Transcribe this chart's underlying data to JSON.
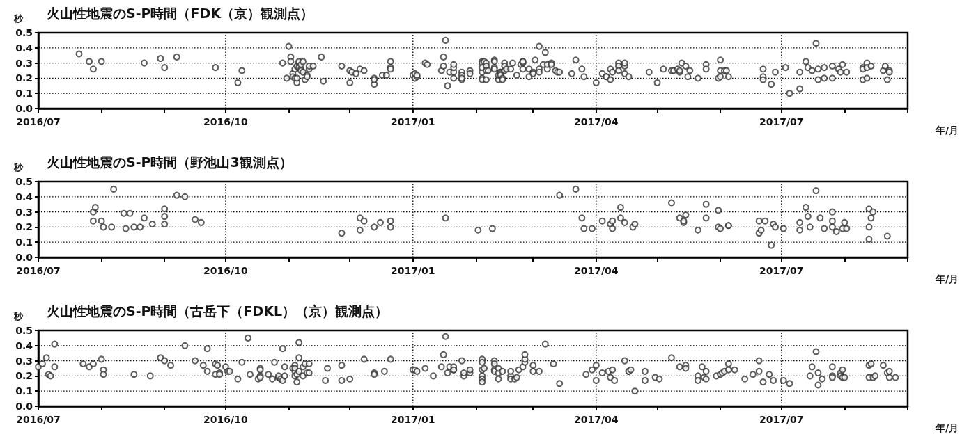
{
  "chart_data": [
    {
      "type": "scatter",
      "title": "火山性地震のS-P時間（FDK（京）観測点）",
      "ylabel": "秒",
      "xlabel": "年/月",
      "color": "#333333",
      "marker": "circle",
      "grid": true,
      "xlim": [
        "2016-07-01",
        "2017-09-01"
      ],
      "xticks": [
        {
          "value": "2016-07-01",
          "label": "2016/07"
        },
        {
          "value": "2016-08-01",
          "label": null
        },
        {
          "value": "2016-09-01",
          "label": null
        },
        {
          "value": "2016-10-01",
          "label": "2016/10"
        },
        {
          "value": "2016-11-01",
          "label": null
        },
        {
          "value": "2016-12-01",
          "label": null
        },
        {
          "value": "2017-01-01",
          "label": "2017/01"
        },
        {
          "value": "2017-02-01",
          "label": null
        },
        {
          "value": "2017-03-01",
          "label": null
        },
        {
          "value": "2017-04-01",
          "label": "2017/04"
        },
        {
          "value": "2017-05-01",
          "label": null
        },
        {
          "value": "2017-06-01",
          "label": null
        },
        {
          "value": "2017-07-01",
          "label": "2017/07"
        },
        {
          "value": "2017-08-01",
          "label": null
        },
        {
          "value": "2017-09-01",
          "label": null
        }
      ],
      "ylim": [
        0,
        0.5
      ],
      "yticks": [
        {
          "value": 0,
          "label": "0.0"
        },
        {
          "value": 0.1,
          "label": "0.1"
        },
        {
          "value": 0.2,
          "label": "0.2"
        },
        {
          "value": 0.3,
          "label": "0.3"
        },
        {
          "value": 0.4,
          "label": "0.4"
        },
        {
          "value": 0.5,
          "label": "0.5"
        }
      ],
      "x": [
        "2016-07-21",
        "2016-07-26",
        "2016-07-28",
        "2016-08-01",
        "2016-08-22",
        "2016-08-30",
        "2016-09-01",
        "2016-09-07",
        "2016-09-26",
        "2016-10-07",
        "2016-10-09",
        "2016-10-29",
        "2016-10-31",
        "2016-11-01",
        "2016-11-02",
        "2016-11-02",
        "2016-11-03",
        "2016-11-03",
        "2016-11-04",
        "2016-11-04",
        "2016-11-05",
        "2016-11-05",
        "2016-11-05",
        "2016-11-06",
        "2016-11-06",
        "2016-11-06",
        "2016-11-07",
        "2016-11-07",
        "2016-11-07",
        "2016-11-08",
        "2016-11-08",
        "2016-11-09",
        "2016-11-10",
        "2016-11-10",
        "2016-11-11",
        "2016-11-11",
        "2016-11-13",
        "2016-11-17",
        "2016-11-18",
        "2016-11-27",
        "2016-12-01",
        "2016-12-01",
        "2016-12-02",
        "2016-12-04",
        "2016-12-06",
        "2016-12-08",
        "2016-12-13",
        "2016-12-13",
        "2016-12-13",
        "2016-12-17",
        "2016-12-19",
        "2016-12-21",
        "2016-12-21",
        "2016-12-21",
        "2017-01-01",
        "2017-01-02",
        "2017-01-02",
        "2017-01-03",
        "2017-01-03",
        "2017-01-07",
        "2017-01-08",
        "2017-01-15",
        "2017-01-16",
        "2017-01-16",
        "2017-01-17",
        "2017-01-18",
        "2017-01-19",
        "2017-01-21",
        "2017-01-21",
        "2017-01-21",
        "2017-01-21",
        "2017-01-25",
        "2017-01-25",
        "2017-01-25",
        "2017-01-25",
        "2017-01-29",
        "2017-01-29",
        "2017-02-04",
        "2017-02-04",
        "2017-02-04",
        "2017-02-04",
        "2017-02-04",
        "2017-02-04",
        "2017-02-05",
        "2017-02-06",
        "2017-02-06",
        "2017-02-06",
        "2017-02-06",
        "2017-02-07",
        "2017-02-10",
        "2017-02-10",
        "2017-02-10",
        "2017-02-10",
        "2017-02-12",
        "2017-02-12",
        "2017-02-13",
        "2017-02-13",
        "2017-02-13",
        "2017-02-13",
        "2017-02-14",
        "2017-02-14",
        "2017-02-15",
        "2017-02-15",
        "2017-02-15",
        "2017-02-16",
        "2017-02-18",
        "2017-02-19",
        "2017-02-21",
        "2017-02-23",
        "2017-02-24",
        "2017-02-24",
        "2017-02-24",
        "2017-02-24",
        "2017-02-27",
        "2017-02-27",
        "2017-03-01",
        "2017-03-01",
        "2017-03-02",
        "2017-03-04",
        "2017-03-04",
        "2017-03-04",
        "2017-03-06",
        "2017-03-07",
        "2017-03-08",
        "2017-03-08",
        "2017-03-10",
        "2017-03-10",
        "2017-03-12",
        "2017-03-13",
        "2017-03-14",
        "2017-03-20",
        "2017-03-22",
        "2017-03-25",
        "2017-03-26",
        "2017-04-01",
        "2017-04-04",
        "2017-04-06",
        "2017-04-06",
        "2017-04-08",
        "2017-04-08",
        "2017-04-09",
        "2017-04-12",
        "2017-04-12",
        "2017-04-12",
        "2017-04-15",
        "2017-04-15",
        "2017-04-15",
        "2017-04-17",
        "2017-04-27",
        "2017-05-01",
        "2017-05-04",
        "2017-05-08",
        "2017-05-09",
        "2017-05-11",
        "2017-05-12",
        "2017-05-12",
        "2017-05-13",
        "2017-05-15",
        "2017-05-16",
        "2017-05-17",
        "2017-05-21",
        "2017-05-25",
        "2017-05-25",
        "2017-05-31",
        "2017-06-01",
        "2017-06-01",
        "2017-06-01",
        "2017-06-03",
        "2017-06-04",
        "2017-06-05",
        "2017-06-22",
        "2017-06-22",
        "2017-06-22",
        "2017-06-26",
        "2017-06-28",
        "2017-07-03",
        "2017-07-05",
        "2017-07-10",
        "2017-07-10",
        "2017-07-13",
        "2017-07-14",
        "2017-07-16",
        "2017-07-18",
        "2017-07-19",
        "2017-07-19",
        "2017-07-22",
        "2017-07-22",
        "2017-07-26",
        "2017-07-26",
        "2017-07-29",
        "2017-07-30",
        "2017-07-31",
        "2017-08-02",
        "2017-08-10",
        "2017-08-10",
        "2017-08-10",
        "2017-08-12",
        "2017-08-12",
        "2017-08-12",
        "2017-08-14",
        "2017-08-20",
        "2017-08-21",
        "2017-08-22",
        "2017-08-23",
        "2017-08-23"
      ],
      "values": [
        0.36,
        0.31,
        0.26,
        0.31,
        0.3,
        0.33,
        0.27,
        0.34,
        0.27,
        0.17,
        0.25,
        0.3,
        0.2,
        0.41,
        0.34,
        0.31,
        0.23,
        0.21,
        0.26,
        0.2,
        0.17,
        0.28,
        0.2,
        0.3,
        0.27,
        0.31,
        0.26,
        0.29,
        0.25,
        0.24,
        0.31,
        0.19,
        0.22,
        0.21,
        0.26,
        0.28,
        0.28,
        0.34,
        0.18,
        0.28,
        0.25,
        0.17,
        0.24,
        0.23,
        0.26,
        0.25,
        0.2,
        0.16,
        0.19,
        0.22,
        0.22,
        0.31,
        0.27,
        0.26,
        0.22,
        0.2,
        0.23,
        0.21,
        0.22,
        0.3,
        0.29,
        0.25,
        0.34,
        0.28,
        0.45,
        0.15,
        0.24,
        0.24,
        0.2,
        0.27,
        0.29,
        0.24,
        0.22,
        0.19,
        0.2,
        0.25,
        0.23,
        0.31,
        0.2,
        0.19,
        0.3,
        0.24,
        0.27,
        0.31,
        0.19,
        0.3,
        0.28,
        0.25,
        0.25,
        0.32,
        0.31,
        0.27,
        0.26,
        0.19,
        0.22,
        0.24,
        0.24,
        0.23,
        0.22,
        0.2,
        0.19,
        0.25,
        0.3,
        0.28,
        0.26,
        0.26,
        0.3,
        0.22,
        0.29,
        0.31,
        0.3,
        0.26,
        0.31,
        0.26,
        0.21,
        0.24,
        0.23,
        0.32,
        0.26,
        0.24,
        0.41,
        0.29,
        0.37,
        0.26,
        0.29,
        0.3,
        0.29,
        0.25,
        0.24,
        0.24,
        0.23,
        0.32,
        0.26,
        0.21,
        0.17,
        0.23,
        0.21,
        0.21,
        0.26,
        0.19,
        0.24,
        0.3,
        0.28,
        0.25,
        0.28,
        0.23,
        0.3,
        0.21,
        0.24,
        0.17,
        0.26,
        0.25,
        0.25,
        0.26,
        0.24,
        0.25,
        0.3,
        0.28,
        0.21,
        0.25,
        0.2,
        0.29,
        0.26,
        0.2,
        0.25,
        0.32,
        0.21,
        0.25,
        0.25,
        0.21,
        0.26,
        0.21,
        0.19,
        0.16,
        0.24,
        0.27,
        0.1,
        0.13,
        0.24,
        0.31,
        0.27,
        0.25,
        0.43,
        0.19,
        0.26,
        0.27,
        0.2,
        0.28,
        0.2,
        0.26,
        0.24,
        0.29,
        0.24,
        0.27,
        0.26,
        0.19,
        0.3,
        0.2,
        0.27,
        0.28,
        0.25,
        0.28,
        0.19,
        0.25,
        0.24
      ]
    },
    {
      "type": "scatter",
      "title": "火山性地震のS-P時間（野池山3観測点）",
      "ylabel": "秒",
      "xlabel": "年/月",
      "color": "#333333",
      "marker": "circle",
      "grid": true,
      "xlim": [
        "2016-07-01",
        "2017-09-01"
      ],
      "xticks": [
        {
          "value": "2016-07-01",
          "label": "2016/07"
        },
        {
          "value": "2016-08-01",
          "label": null
        },
        {
          "value": "2016-09-01",
          "label": null
        },
        {
          "value": "2016-10-01",
          "label": "2016/10"
        },
        {
          "value": "2016-11-01",
          "label": null
        },
        {
          "value": "2016-12-01",
          "label": null
        },
        {
          "value": "2017-01-01",
          "label": "2017/01"
        },
        {
          "value": "2017-02-01",
          "label": null
        },
        {
          "value": "2017-03-01",
          "label": null
        },
        {
          "value": "2017-04-01",
          "label": "2017/04"
        },
        {
          "value": "2017-05-01",
          "label": null
        },
        {
          "value": "2017-06-01",
          "label": null
        },
        {
          "value": "2017-07-01",
          "label": "2017/07"
        },
        {
          "value": "2017-08-01",
          "label": null
        },
        {
          "value": "2017-09-01",
          "label": null
        }
      ],
      "ylim": [
        0,
        0.5
      ],
      "yticks": [
        {
          "value": 0,
          "label": "0.0"
        },
        {
          "value": 0.1,
          "label": "0.1"
        },
        {
          "value": 0.2,
          "label": "0.2"
        },
        {
          "value": 0.3,
          "label": "0.3"
        },
        {
          "value": 0.4,
          "label": "0.4"
        },
        {
          "value": 0.5,
          "label": "0.5"
        }
      ],
      "x": [
        "2016-07-28",
        "2016-07-28",
        "2016-07-29",
        "2016-08-01",
        "2016-08-02",
        "2016-08-06",
        "2016-08-07",
        "2016-08-12",
        "2016-08-13",
        "2016-08-15",
        "2016-08-17",
        "2016-08-20",
        "2016-08-22",
        "2016-08-26",
        "2016-09-01",
        "2016-09-01",
        "2016-09-01",
        "2016-09-07",
        "2016-09-11",
        "2016-09-16",
        "2016-09-19",
        "2016-11-27",
        "2016-12-06",
        "2016-12-06",
        "2016-12-08",
        "2016-12-13",
        "2016-12-16",
        "2016-12-21",
        "2016-12-21",
        "2017-01-17",
        "2017-02-02",
        "2017-02-09",
        "2017-03-14",
        "2017-03-22",
        "2017-03-25",
        "2017-03-26",
        "2017-03-30",
        "2017-04-04",
        "2017-04-08",
        "2017-04-09",
        "2017-04-09",
        "2017-04-13",
        "2017-04-13",
        "2017-04-15",
        "2017-04-19",
        "2017-04-20",
        "2017-05-08",
        "2017-05-12",
        "2017-05-14",
        "2017-05-14",
        "2017-05-15",
        "2017-05-21",
        "2017-05-25",
        "2017-05-25",
        "2017-05-31",
        "2017-05-31",
        "2017-06-01",
        "2017-06-05",
        "2017-06-05",
        "2017-06-20",
        "2017-06-23",
        "2017-06-20",
        "2017-06-21",
        "2017-06-26",
        "2017-06-27",
        "2017-06-28",
        "2017-07-02",
        "2017-07-10",
        "2017-07-10",
        "2017-07-13",
        "2017-07-14",
        "2017-07-15",
        "2017-07-18",
        "2017-07-20",
        "2017-07-22",
        "2017-07-26",
        "2017-07-26",
        "2017-07-26",
        "2017-07-28",
        "2017-07-31",
        "2017-08-01",
        "2017-08-02",
        "2017-08-13",
        "2017-08-15",
        "2017-08-14",
        "2017-08-13",
        "2017-08-13",
        "2017-08-22"
      ],
      "values": [
        0.3,
        0.24,
        0.33,
        0.24,
        0.2,
        0.2,
        0.45,
        0.29,
        0.19,
        0.29,
        0.2,
        0.2,
        0.26,
        0.22,
        0.32,
        0.27,
        0.22,
        0.41,
        0.4,
        0.25,
        0.23,
        0.16,
        0.26,
        0.18,
        0.24,
        0.2,
        0.23,
        0.24,
        0.2,
        0.26,
        0.18,
        0.19,
        0.41,
        0.45,
        0.26,
        0.19,
        0.19,
        0.24,
        0.22,
        0.24,
        0.19,
        0.33,
        0.26,
        0.23,
        0.2,
        0.22,
        0.36,
        0.26,
        0.23,
        0.24,
        0.28,
        0.18,
        0.35,
        0.26,
        0.31,
        0.2,
        0.19,
        0.21,
        0.21,
        0.24,
        0.24,
        0.16,
        0.18,
        0.08,
        0.22,
        0.2,
        0.19,
        0.23,
        0.18,
        0.33,
        0.27,
        0.2,
        0.44,
        0.26,
        0.19,
        0.3,
        0.24,
        0.2,
        0.17,
        0.19,
        0.23,
        0.19,
        0.32,
        0.3,
        0.26,
        0.2,
        0.12,
        0.14
      ]
    },
    {
      "type": "scatter",
      "title": "火山性地震のS-P時間（古岳下（FDKL）（京）観測点）",
      "ylabel": "秒",
      "xlabel": "年/月",
      "color": "#333333",
      "marker": "circle",
      "grid": true,
      "xlim": [
        "2016-07-01",
        "2017-09-01"
      ],
      "xticks": [
        {
          "value": "2016-07-01",
          "label": "2016/07"
        },
        {
          "value": "2016-08-01",
          "label": null
        },
        {
          "value": "2016-09-01",
          "label": null
        },
        {
          "value": "2016-10-01",
          "label": "2016/10"
        },
        {
          "value": "2016-11-01",
          "label": null
        },
        {
          "value": "2016-12-01",
          "label": null
        },
        {
          "value": "2017-01-01",
          "label": "2017/01"
        },
        {
          "value": "2017-02-01",
          "label": null
        },
        {
          "value": "2017-03-01",
          "label": null
        },
        {
          "value": "2017-04-01",
          "label": "2017/04"
        },
        {
          "value": "2017-05-01",
          "label": null
        },
        {
          "value": "2017-06-01",
          "label": null
        },
        {
          "value": "2017-07-01",
          "label": "2017/07"
        },
        {
          "value": "2017-08-01",
          "label": null
        },
        {
          "value": "2017-09-01",
          "label": null
        }
      ],
      "ylim": [
        0,
        0.5
      ],
      "yticks": [
        {
          "value": 0,
          "label": "0.0"
        },
        {
          "value": 0.1,
          "label": "0.1"
        },
        {
          "value": 0.2,
          "label": "0.2"
        },
        {
          "value": 0.3,
          "label": "0.3"
        },
        {
          "value": 0.4,
          "label": "0.4"
        },
        {
          "value": 0.5,
          "label": "0.5"
        }
      ],
      "x": [
        "2016-07-01",
        "2016-07-03",
        "2016-07-05",
        "2016-07-06",
        "2016-07-07",
        "2016-07-09",
        "2016-07-09",
        "2016-07-23",
        "2016-07-26",
        "2016-07-28",
        "2016-08-01",
        "2016-08-02",
        "2016-08-02",
        "2016-08-17",
        "2016-08-25",
        "2016-08-30",
        "2016-09-01",
        "2016-09-04",
        "2016-09-11",
        "2016-09-16",
        "2016-09-20",
        "2016-09-22",
        "2016-09-22",
        "2016-09-26",
        "2016-09-26",
        "2016-09-27",
        "2016-09-28",
        "2016-09-28",
        "2016-10-01",
        "2016-10-02",
        "2016-10-03",
        "2016-10-07",
        "2016-10-09",
        "2016-10-12",
        "2016-10-13",
        "2016-10-17",
        "2016-10-18",
        "2016-10-18",
        "2016-10-18",
        "2016-10-18",
        "2016-10-22",
        "2016-10-24",
        "2016-10-25",
        "2016-10-27",
        "2016-10-27",
        "2016-10-28",
        "2016-10-29",
        "2016-10-29",
        "2016-10-30",
        "2016-10-30",
        "2016-11-03",
        "2016-11-04",
        "2016-11-04",
        "2016-11-04",
        "2016-11-04",
        "2016-11-05",
        "2016-11-05",
        "2016-11-06",
        "2016-11-06",
        "2016-11-06",
        "2016-11-08",
        "2016-11-08",
        "2016-11-09",
        "2016-11-10",
        "2016-11-11",
        "2016-11-11",
        "2016-11-19",
        "2016-11-20",
        "2016-11-27",
        "2016-11-27",
        "2016-12-01",
        "2016-12-08",
        "2016-12-13",
        "2016-12-13",
        "2016-12-18",
        "2016-12-21",
        "2017-01-01",
        "2017-01-02",
        "2017-01-03",
        "2017-01-07",
        "2017-01-11",
        "2017-01-15",
        "2017-01-16",
        "2017-01-17",
        "2017-01-18",
        "2017-01-19",
        "2017-01-21",
        "2017-01-21",
        "2017-01-21",
        "2017-01-25",
        "2017-01-26",
        "2017-01-26",
        "2017-01-29",
        "2017-01-29",
        "2017-02-04",
        "2017-02-04",
        "2017-02-04",
        "2017-02-04",
        "2017-02-04",
        "2017-02-04",
        "2017-02-05",
        "2017-02-10",
        "2017-02-10",
        "2017-02-10",
        "2017-02-10",
        "2017-02-12",
        "2017-02-12",
        "2017-02-12",
        "2017-02-14",
        "2017-02-18",
        "2017-02-18",
        "2017-02-18",
        "2017-02-20",
        "2017-02-21",
        "2017-02-22",
        "2017-02-24",
        "2017-02-25",
        "2017-02-25",
        "2017-02-25",
        "2017-03-01",
        "2017-03-01",
        "2017-03-04",
        "2017-03-07",
        "2017-03-11",
        "2017-03-14",
        "2017-03-27",
        "2017-03-30",
        "2017-04-01",
        "2017-04-01",
        "2017-04-04",
        "2017-04-07",
        "2017-04-08",
        "2017-04-09",
        "2017-04-10",
        "2017-04-15",
        "2017-04-17",
        "2017-04-17",
        "2017-04-18",
        "2017-04-20",
        "2017-04-25",
        "2017-04-25",
        "2017-04-30",
        "2017-05-02",
        "2017-05-08",
        "2017-05-12",
        "2017-05-15",
        "2017-05-15",
        "2017-05-21",
        "2017-05-21",
        "2017-05-23",
        "2017-05-24",
        "2017-05-25",
        "2017-05-25",
        "2017-05-30",
        "2017-06-01",
        "2017-06-02",
        "2017-06-03",
        "2017-06-05",
        "2017-06-05",
        "2017-06-08",
        "2017-06-13",
        "2017-06-17",
        "2017-06-20",
        "2017-06-20",
        "2017-06-22",
        "2017-06-25",
        "2017-06-27",
        "2017-07-02",
        "2017-07-05",
        "2017-07-15",
        "2017-07-16",
        "2017-07-18",
        "2017-07-19",
        "2017-07-19",
        "2017-07-21",
        "2017-07-26",
        "2017-07-26",
        "2017-07-26",
        "2017-07-30",
        "2017-07-30",
        "2017-07-31",
        "2017-07-31",
        "2017-08-01",
        "2017-08-13",
        "2017-08-13",
        "2017-08-14",
        "2017-08-15",
        "2017-08-16",
        "2017-08-20",
        "2017-08-22",
        "2017-08-23",
        "2017-08-23",
        "2017-08-26"
      ],
      "values": [
        0.26,
        0.28,
        0.32,
        0.21,
        0.2,
        0.41,
        0.26,
        0.28,
        0.26,
        0.28,
        0.31,
        0.24,
        0.21,
        0.21,
        0.2,
        0.32,
        0.3,
        0.27,
        0.4,
        0.3,
        0.27,
        0.23,
        0.38,
        0.21,
        0.28,
        0.27,
        0.22,
        0.21,
        0.26,
        0.23,
        0.23,
        0.18,
        0.29,
        0.45,
        0.21,
        0.18,
        0.25,
        0.24,
        0.2,
        0.19,
        0.21,
        0.18,
        0.29,
        0.19,
        0.2,
        0.18,
        0.38,
        0.17,
        0.2,
        0.26,
        0.25,
        0.27,
        0.23,
        0.2,
        0.25,
        0.16,
        0.21,
        0.42,
        0.32,
        0.23,
        0.2,
        0.26,
        0.28,
        0.22,
        0.28,
        0.22,
        0.17,
        0.25,
        0.27,
        0.17,
        0.18,
        0.31,
        0.22,
        0.21,
        0.23,
        0.31,
        0.24,
        0.24,
        0.23,
        0.25,
        0.2,
        0.26,
        0.34,
        0.46,
        0.22,
        0.26,
        0.24,
        0.26,
        0.24,
        0.3,
        0.2,
        0.22,
        0.22,
        0.24,
        0.31,
        0.29,
        0.2,
        0.24,
        0.18,
        0.16,
        0.25,
        0.3,
        0.28,
        0.24,
        0.23,
        0.22,
        0.18,
        0.25,
        0.23,
        0.2,
        0.18,
        0.23,
        0.18,
        0.19,
        0.24,
        0.26,
        0.29,
        0.31,
        0.34,
        0.27,
        0.23,
        0.23,
        0.41,
        0.28,
        0.15,
        0.21,
        0.24,
        0.27,
        0.17,
        0.22,
        0.23,
        0.19,
        0.24,
        0.17,
        0.3,
        0.23,
        0.23,
        0.24,
        0.1,
        0.17,
        0.23,
        0.19,
        0.18,
        0.32,
        0.26,
        0.27,
        0.25,
        0.2,
        0.17,
        0.26,
        0.19,
        0.23,
        0.18,
        0.2,
        0.21,
        0.22,
        0.23,
        0.24,
        0.28,
        0.24,
        0.18,
        0.21,
        0.23,
        0.3,
        0.16,
        0.21,
        0.17,
        0.17,
        0.15,
        0.2,
        0.26,
        0.36,
        0.22,
        0.14,
        0.18,
        0.26,
        0.2,
        0.19,
        0.22,
        0.2,
        0.19,
        0.24,
        0.19,
        0.19,
        0.27,
        0.28,
        0.19,
        0.2,
        0.27,
        0.22,
        0.23,
        0.19,
        0.19
      ]
    }
  ]
}
